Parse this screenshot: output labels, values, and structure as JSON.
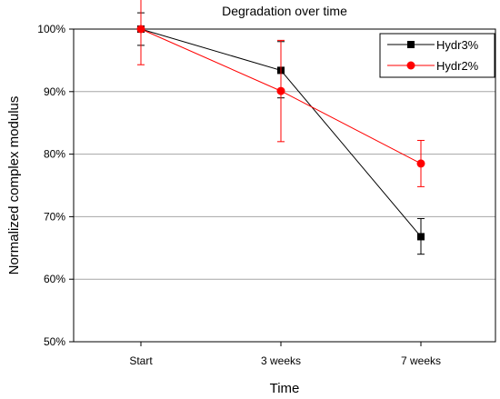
{
  "chart_data": {
    "type": "line",
    "title": "Degradation over time",
    "xlabel": "Time",
    "ylabel": "Normalized complex modulus",
    "categories": [
      "Start",
      "3 weeks",
      "7 weeks"
    ],
    "ylim": [
      50,
      100
    ],
    "yticks": [
      "50%",
      "60%",
      "70%",
      "80%",
      "90%",
      "100%"
    ],
    "ytick_values": [
      50,
      60,
      70,
      80,
      90,
      100
    ],
    "grid": true,
    "legend_position": "top-right",
    "series": [
      {
        "name": "Hydr3%",
        "values": [
          100,
          93.4,
          66.8
        ],
        "err_low": [
          97.4,
          89.0,
          64.0
        ],
        "err_high": [
          102.6,
          98.0,
          69.7
        ],
        "color": "#000000",
        "marker": "square"
      },
      {
        "name": "Hydr2%",
        "values": [
          100,
          90.1,
          78.5
        ],
        "err_low": [
          94.3,
          82.0,
          74.8
        ],
        "err_high": [
          105.7,
          98.2,
          82.2
        ],
        "color": "#ff0000",
        "marker": "circle"
      }
    ]
  }
}
